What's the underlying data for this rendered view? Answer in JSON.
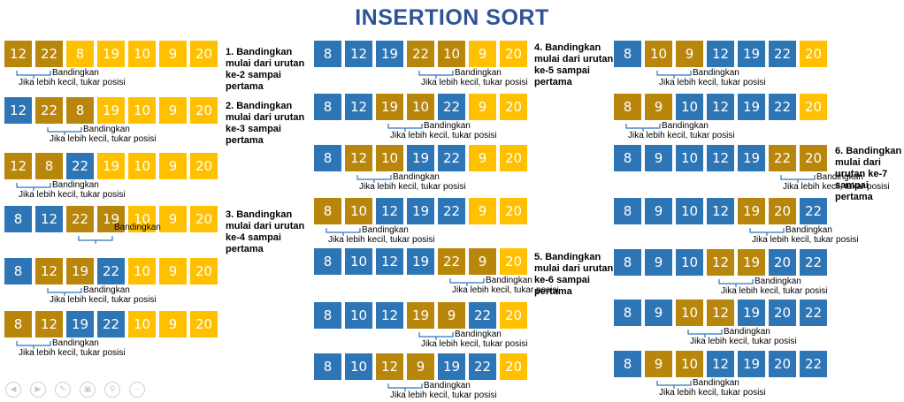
{
  "title": "INSERTION SORT",
  "colors": {
    "blue": "#2e75b6",
    "gold": "#b8860b",
    "yellow": "#ffc000",
    "title": "#2f5496"
  },
  "labels": {
    "compare": "Bandingkan",
    "swap": "Jika lebih kecil, tukar posisi"
  },
  "steps": [
    "1. Bandingkan mulai dari urutan ke-2 sampai pertama",
    "2. Bandingkan mulai dari urutan ke-3 sampai pertama",
    "3. Bandingkan mulai dari urutan ke-4 sampai pertama",
    "4. Bandingkan mulai dari urutan ke-5 sampai pertama",
    "5. Bandingkan mulai dari urutan ke-6 sampai pertama",
    "6. Bandingkan mulai dari urutan ke-7 sampai pertama"
  ],
  "rows": [
    {
      "values": [
        12,
        22,
        8,
        19,
        10,
        9,
        20
      ],
      "colors": [
        "g",
        "g",
        "y",
        "y",
        "y",
        "y",
        "y"
      ],
      "compare": [
        0,
        1
      ],
      "swap_label": true
    },
    {
      "values": [
        12,
        22,
        8,
        19,
        10,
        9,
        20
      ],
      "colors": [
        "b",
        "g",
        "g",
        "y",
        "y",
        "y",
        "y"
      ],
      "compare": [
        1,
        2
      ],
      "swap_label": true
    },
    {
      "values": [
        12,
        8,
        22,
        19,
        10,
        9,
        20
      ],
      "colors": [
        "g",
        "g",
        "b",
        "y",
        "y",
        "y",
        "y"
      ],
      "compare": [
        0,
        1
      ],
      "swap_label": true
    },
    {
      "values": [
        8,
        12,
        22,
        19,
        10,
        9,
        20
      ],
      "colors": [
        "b",
        "b",
        "g",
        "g",
        "y",
        "y",
        "y"
      ],
      "compare": [
        2,
        3
      ],
      "swap_label": false
    },
    {
      "values": [
        8,
        12,
        19,
        22,
        10,
        9,
        20
      ],
      "colors": [
        "b",
        "g",
        "g",
        "b",
        "y",
        "y",
        "y"
      ],
      "compare": [
        1,
        2
      ],
      "swap_label": true
    },
    {
      "values": [
        8,
        12,
        19,
        22,
        10,
        9,
        20
      ],
      "colors": [
        "g",
        "g",
        "b",
        "b",
        "y",
        "y",
        "y"
      ],
      "compare": [
        0,
        1
      ],
      "swap_label": true
    },
    {
      "values": [
        8,
        12,
        19,
        22,
        10,
        9,
        20
      ],
      "colors": [
        "b",
        "b",
        "b",
        "g",
        "g",
        "y",
        "y"
      ],
      "compare": [
        3,
        4
      ],
      "swap_label": true
    },
    {
      "values": [
        8,
        12,
        19,
        10,
        22,
        9,
        20
      ],
      "colors": [
        "b",
        "b",
        "g",
        "g",
        "b",
        "y",
        "y"
      ],
      "compare": [
        2,
        3
      ],
      "swap_label": true
    },
    {
      "values": [
        8,
        12,
        10,
        19,
        22,
        9,
        20
      ],
      "colors": [
        "b",
        "g",
        "g",
        "b",
        "b",
        "y",
        "y"
      ],
      "compare": [
        1,
        2
      ],
      "swap_label": true
    },
    {
      "values": [
        8,
        10,
        12,
        19,
        22,
        9,
        20
      ],
      "colors": [
        "g",
        "g",
        "b",
        "b",
        "b",
        "y",
        "y"
      ],
      "compare": [
        0,
        1
      ],
      "swap_label": true
    },
    {
      "values": [
        8,
        10,
        12,
        19,
        22,
        9,
        20
      ],
      "colors": [
        "b",
        "b",
        "b",
        "b",
        "g",
        "g",
        "y"
      ],
      "compare": [
        4,
        5
      ],
      "swap_label": true
    },
    {
      "values": [
        8,
        10,
        12,
        19,
        9,
        22,
        20
      ],
      "colors": [
        "b",
        "b",
        "b",
        "g",
        "g",
        "b",
        "y"
      ],
      "compare": [
        3,
        4
      ],
      "swap_label": true
    },
    {
      "values": [
        8,
        10,
        12,
        9,
        19,
        22,
        20
      ],
      "colors": [
        "b",
        "b",
        "g",
        "g",
        "b",
        "b",
        "y"
      ],
      "compare": [
        2,
        3
      ],
      "swap_label": true
    },
    {
      "values": [
        8,
        10,
        9,
        12,
        19,
        22,
        20
      ],
      "colors": [
        "b",
        "g",
        "g",
        "b",
        "b",
        "b",
        "y"
      ],
      "compare": [
        1,
        2
      ],
      "swap_label": true
    },
    {
      "values": [
        8,
        9,
        10,
        12,
        19,
        22,
        20
      ],
      "colors": [
        "g",
        "g",
        "b",
        "b",
        "b",
        "b",
        "y"
      ],
      "compare": [
        0,
        1
      ],
      "swap_label": true
    },
    {
      "values": [
        8,
        9,
        10,
        12,
        19,
        22,
        20
      ],
      "colors": [
        "b",
        "b",
        "b",
        "b",
        "b",
        "g",
        "g"
      ],
      "compare": [
        5,
        6
      ],
      "swap_label": true
    },
    {
      "values": [
        8,
        9,
        10,
        12,
        19,
        20,
        22
      ],
      "colors": [
        "b",
        "b",
        "b",
        "b",
        "g",
        "g",
        "b"
      ],
      "compare": [
        4,
        5
      ],
      "swap_label": true
    },
    {
      "values": [
        8,
        9,
        10,
        12,
        19,
        20,
        22
      ],
      "colors": [
        "b",
        "b",
        "b",
        "g",
        "g",
        "b",
        "b"
      ],
      "compare": [
        3,
        4
      ],
      "swap_label": true
    },
    {
      "values": [
        8,
        9,
        10,
        12,
        19,
        20,
        22
      ],
      "colors": [
        "b",
        "b",
        "g",
        "g",
        "b",
        "b",
        "b"
      ],
      "compare": [
        2,
        3
      ],
      "swap_label": true
    },
    {
      "values": [
        8,
        9,
        10,
        12,
        19,
        20,
        22
      ],
      "colors": [
        "b",
        "g",
        "g",
        "b",
        "b",
        "b",
        "b"
      ],
      "compare": [
        1,
        2
      ],
      "swap_label": true
    }
  ],
  "controls": [
    "prev-icon",
    "next-icon",
    "pen-icon",
    "view-icon",
    "zoom-icon",
    "more-icon"
  ]
}
